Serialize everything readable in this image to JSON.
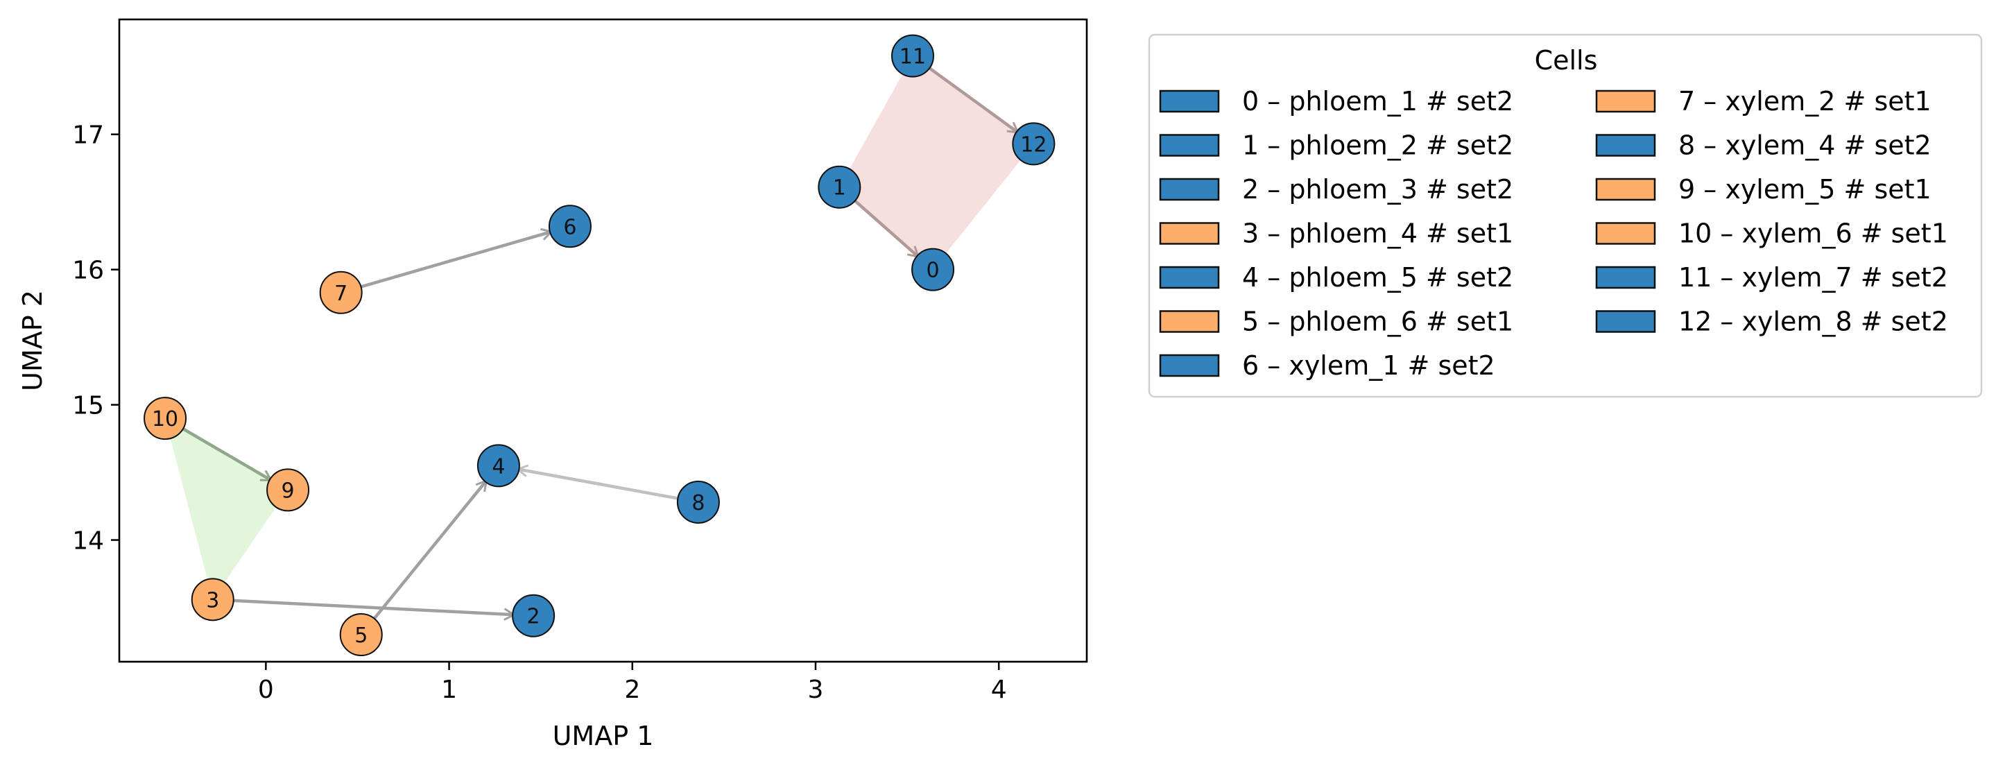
{
  "chart_data": {
    "type": "scatter",
    "title": "",
    "xlabel": "UMAP 1",
    "ylabel": "UMAP 2",
    "xlim": [
      -0.8,
      4.48
    ],
    "ylim": [
      13.1,
      17.85
    ],
    "xticks": [
      0,
      1,
      2,
      3,
      4
    ],
    "yticks": [
      14,
      15,
      16,
      17
    ],
    "grid": false,
    "legend": {
      "title": "Cells",
      "placement": "outside-right",
      "columns": 2,
      "entries": [
        {
          "label": "0 – phloem_1 # set2",
          "color": "#3182bd"
        },
        {
          "label": "1 – phloem_2 # set2",
          "color": "#3182bd"
        },
        {
          "label": "2 – phloem_3 # set2",
          "color": "#3182bd"
        },
        {
          "label": "3 – phloem_4 # set1",
          "color": "#fdae6b"
        },
        {
          "label": "4 – phloem_5 # set2",
          "color": "#3182bd"
        },
        {
          "label": "5 – phloem_6 # set1",
          "color": "#fdae6b"
        },
        {
          "label": "6 – xylem_1 # set2",
          "color": "#3182bd"
        },
        {
          "label": "7 – xylem_2 # set1",
          "color": "#fdae6b"
        },
        {
          "label": "8 – xylem_4 # set2",
          "color": "#3182bd"
        },
        {
          "label": "9 – xylem_5 # set1",
          "color": "#fdae6b"
        },
        {
          "label": "10 – xylem_6 # set1",
          "color": "#fdae6b"
        },
        {
          "label": "11 – xylem_7 # set2",
          "color": "#3182bd"
        },
        {
          "label": "12 – xylem_8 # set2",
          "color": "#3182bd"
        }
      ]
    },
    "points": [
      {
        "id": "0",
        "x": 3.64,
        "y": 16.0,
        "color": "#3182bd"
      },
      {
        "id": "1",
        "x": 3.13,
        "y": 16.61,
        "color": "#3182bd"
      },
      {
        "id": "2",
        "x": 1.46,
        "y": 13.44,
        "color": "#3182bd"
      },
      {
        "id": "3",
        "x": -0.29,
        "y": 13.56,
        "color": "#fdae6b"
      },
      {
        "id": "4",
        "x": 1.27,
        "y": 14.55,
        "color": "#3182bd"
      },
      {
        "id": "5",
        "x": 0.52,
        "y": 13.3,
        "color": "#fdae6b"
      },
      {
        "id": "6",
        "x": 1.66,
        "y": 16.32,
        "color": "#3182bd"
      },
      {
        "id": "7",
        "x": 0.41,
        "y": 15.83,
        "color": "#fdae6b"
      },
      {
        "id": "8",
        "x": 2.36,
        "y": 14.28,
        "color": "#3182bd"
      },
      {
        "id": "9",
        "x": 0.12,
        "y": 14.37,
        "color": "#fdae6b"
      },
      {
        "id": "10",
        "x": -0.55,
        "y": 14.9,
        "color": "#fdae6b"
      },
      {
        "id": "11",
        "x": 3.53,
        "y": 17.58,
        "color": "#3182bd"
      },
      {
        "id": "12",
        "x": 4.19,
        "y": 16.93,
        "color": "#3182bd"
      }
    ],
    "arrows": [
      {
        "from": "7",
        "to": "6",
        "color": "#a0a0a0"
      },
      {
        "from": "8",
        "to": "4",
        "color": "#c0c0c0"
      },
      {
        "from": "5",
        "to": "4",
        "color": "#a0a0a0"
      },
      {
        "from": "3",
        "to": "2",
        "color": "#a0a0a0"
      },
      {
        "from": "10",
        "to": "9",
        "color": "#8fa88a"
      },
      {
        "from": "1",
        "to": "0",
        "color": "#b09999"
      },
      {
        "from": "11",
        "to": "12",
        "color": "#b09999"
      }
    ],
    "polygons": [
      {
        "vertices": [
          "11",
          "12",
          "0",
          "1"
        ],
        "color": "#f6dfdf"
      },
      {
        "vertices": [
          "10",
          "9",
          "3"
        ],
        "color": "#e2f6db"
      }
    ]
  }
}
